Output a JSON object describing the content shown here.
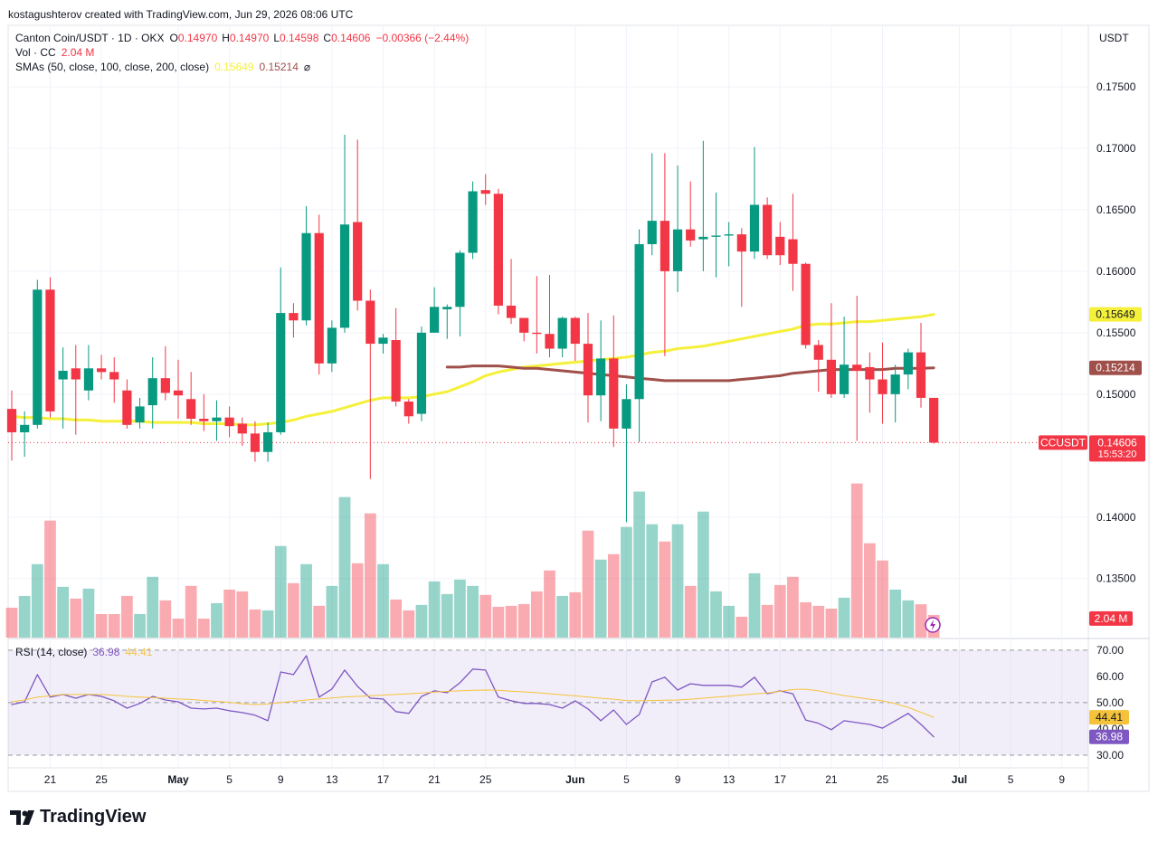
{
  "header": {
    "credit": "kostagushterov created with TradingView.com, Jun 29, 2026 08:06 UTC"
  },
  "footer": {
    "brand": "TradingView"
  },
  "chart_data": [
    {
      "type": "candlestick",
      "title": "Canton Coin/USDT · 1D · OKX",
      "ohlc_labels": [
        {
          "key": "O",
          "value": "0.14970"
        },
        {
          "key": "H",
          "value": "0.14970"
        },
        {
          "key": "L",
          "value": "0.14598"
        },
        {
          "key": "C",
          "value": "0.14606"
        }
      ],
      "change_label": "−0.00366 (−2.44%)",
      "currency": "USDT",
      "symbol": "CCUSDT",
      "last_price_label": "0.14606",
      "countdown": "15:53:20",
      "up_color": "#089981",
      "down_color": "#f23645",
      "x": [
        "2026-04-18",
        "2026-04-19",
        "2026-04-20",
        "2026-04-21",
        "2026-04-22",
        "2026-04-23",
        "2026-04-24",
        "2026-04-25",
        "2026-04-26",
        "2026-04-27",
        "2026-04-28",
        "2026-04-29",
        "2026-04-30",
        "2026-05-01",
        "2026-05-02",
        "2026-05-03",
        "2026-05-04",
        "2026-05-05",
        "2026-05-06",
        "2026-05-07",
        "2026-05-08",
        "2026-05-09",
        "2026-05-10",
        "2026-05-11",
        "2026-05-12",
        "2026-05-13",
        "2026-05-14",
        "2026-05-15",
        "2026-05-16",
        "2026-05-17",
        "2026-05-18",
        "2026-05-19",
        "2026-05-20",
        "2026-05-21",
        "2026-05-22",
        "2026-05-23",
        "2026-05-24",
        "2026-05-25",
        "2026-05-26",
        "2026-05-27",
        "2026-05-28",
        "2026-05-29",
        "2026-05-30",
        "2026-05-31",
        "2026-06-01",
        "2026-06-02",
        "2026-06-03",
        "2026-06-04",
        "2026-06-05",
        "2026-06-06",
        "2026-06-07",
        "2026-06-08",
        "2026-06-09",
        "2026-06-10",
        "2026-06-11",
        "2026-06-12",
        "2026-06-13",
        "2026-06-14",
        "2026-06-15",
        "2026-06-16",
        "2026-06-17",
        "2026-06-18",
        "2026-06-19",
        "2026-06-20",
        "2026-06-21",
        "2026-06-22",
        "2026-06-23",
        "2026-06-24",
        "2026-06-25",
        "2026-06-26",
        "2026-06-27",
        "2026-06-28",
        "2026-06-29"
      ],
      "open": [
        0.1488,
        0.1469,
        0.1475,
        0.1585,
        0.1512,
        0.1521,
        0.1503,
        0.1521,
        0.1518,
        0.1503,
        0.1477,
        0.1491,
        0.1513,
        0.1503,
        0.1496,
        0.148,
        0.1478,
        0.1481,
        0.1476,
        0.1468,
        0.1453,
        0.1469,
        0.1566,
        0.156,
        0.1631,
        0.1525,
        0.1554,
        0.164,
        0.1576,
        0.1541,
        0.1544,
        0.1494,
        0.1484,
        0.155,
        0.1569,
        0.1571,
        0.1615,
        0.1666,
        0.1663,
        0.1572,
        0.1562,
        0.155,
        0.1549,
        0.1537,
        0.1562,
        0.1541,
        0.1499,
        0.1529,
        0.1472,
        0.1496,
        0.1622,
        0.1641,
        0.16,
        0.1634,
        0.1626,
        0.1628,
        0.1629,
        0.163,
        0.1616,
        0.1654,
        0.1628,
        0.1626,
        0.1606,
        0.154,
        0.1528,
        0.15,
        0.1524,
        0.1522,
        0.1512,
        0.15,
        0.1516,
        0.1534,
        0.1497
      ],
      "high": [
        0.1503,
        0.1486,
        0.1593,
        0.1595,
        0.1538,
        0.154,
        0.154,
        0.1532,
        0.153,
        0.1512,
        0.1497,
        0.153,
        0.1539,
        0.1528,
        0.1518,
        0.15,
        0.1495,
        0.149,
        0.1481,
        0.1478,
        0.1477,
        0.1603,
        0.1574,
        0.1653,
        0.1646,
        0.156,
        0.1711,
        0.1707,
        0.1585,
        0.1549,
        0.157,
        0.1496,
        0.1555,
        0.1587,
        0.1573,
        0.1617,
        0.1673,
        0.1679,
        0.1667,
        0.161,
        0.1562,
        0.1596,
        0.1597,
        0.1563,
        0.1563,
        0.1566,
        0.156,
        0.1564,
        0.1508,
        0.1634,
        0.1696,
        0.1696,
        0.1686,
        0.1673,
        0.1706,
        0.1664,
        0.164,
        0.1635,
        0.1701,
        0.166,
        0.164,
        0.1663,
        0.1607,
        0.1544,
        0.1574,
        0.1563,
        0.158,
        0.1534,
        0.1542,
        0.1524,
        0.1537,
        0.1558,
        0.1497
      ],
      "low": [
        0.1446,
        0.1449,
        0.1472,
        0.1481,
        0.1472,
        0.1467,
        0.1495,
        0.1512,
        0.1493,
        0.1472,
        0.1472,
        0.1472,
        0.1495,
        0.148,
        0.1475,
        0.147,
        0.1462,
        0.1465,
        0.1458,
        0.1445,
        0.1445,
        0.1467,
        0.1546,
        0.1556,
        0.1516,
        0.1518,
        0.155,
        0.1568,
        0.1431,
        0.1533,
        0.149,
        0.1476,
        0.1478,
        0.155,
        0.1545,
        0.1547,
        0.161,
        0.1654,
        0.1565,
        0.1557,
        0.1543,
        0.1533,
        0.153,
        0.153,
        0.1527,
        0.1477,
        0.1478,
        0.1457,
        0.1396,
        0.1461,
        0.1613,
        0.1531,
        0.1583,
        0.162,
        0.16,
        0.1595,
        0.1604,
        0.1571,
        0.161,
        0.161,
        0.1605,
        0.1584,
        0.1537,
        0.1502,
        0.1497,
        0.1497,
        0.1462,
        0.1485,
        0.1476,
        0.1477,
        0.1504,
        0.1489,
        0.14598
      ],
      "close": [
        0.1469,
        0.1475,
        0.1585,
        0.1486,
        0.1519,
        0.1512,
        0.1521,
        0.1518,
        0.1512,
        0.1475,
        0.149,
        0.1513,
        0.1501,
        0.1499,
        0.148,
        0.1478,
        0.1481,
        0.1474,
        0.1468,
        0.1453,
        0.1469,
        0.1566,
        0.156,
        0.1631,
        0.1525,
        0.1554,
        0.1638,
        0.1576,
        0.1541,
        0.1546,
        0.1494,
        0.1482,
        0.155,
        0.1571,
        0.1571,
        0.1615,
        0.1665,
        0.1663,
        0.1572,
        0.1562,
        0.155,
        0.1549,
        0.1537,
        0.1562,
        0.1541,
        0.1499,
        0.1529,
        0.1472,
        0.1496,
        0.1622,
        0.1641,
        0.16,
        0.1634,
        0.1625,
        0.1628,
        0.1629,
        0.163,
        0.1616,
        0.1654,
        0.1613,
        0.1613,
        0.1606,
        0.154,
        0.1528,
        0.15,
        0.1524,
        0.1519,
        0.1512,
        0.15,
        0.1516,
        0.1534,
        0.1497,
        0.14606
      ],
      "xlim": [
        "2026-04-18",
        "2026-07-11"
      ],
      "xticks": [
        {
          "value": "2026-04-21",
          "label": "21"
        },
        {
          "value": "2026-04-25",
          "label": "25"
        },
        {
          "value": "2026-05-01",
          "label": "May"
        },
        {
          "value": "2026-05-05",
          "label": "5"
        },
        {
          "value": "2026-05-09",
          "label": "9"
        },
        {
          "value": "2026-05-13",
          "label": "13"
        },
        {
          "value": "2026-05-17",
          "label": "17"
        },
        {
          "value": "2026-05-21",
          "label": "21"
        },
        {
          "value": "2026-05-25",
          "label": "25"
        },
        {
          "value": "2026-06-01",
          "label": "Jun"
        },
        {
          "value": "2026-06-05",
          "label": "5"
        },
        {
          "value": "2026-06-09",
          "label": "9"
        },
        {
          "value": "2026-06-13",
          "label": "13"
        },
        {
          "value": "2026-06-17",
          "label": "17"
        },
        {
          "value": "2026-06-21",
          "label": "21"
        },
        {
          "value": "2026-06-25",
          "label": "25"
        },
        {
          "value": "2026-07-01",
          "label": "Jul"
        },
        {
          "value": "2026-07-05",
          "label": "5"
        },
        {
          "value": "2026-07-09",
          "label": "9"
        }
      ],
      "ylim": [
        0.1302,
        0.18
      ],
      "yticks": [
        {
          "value": 0.135,
          "label": "0.13500"
        },
        {
          "value": 0.14,
          "label": "0.14000"
        },
        {
          "value": 0.15,
          "label": "0.15000"
        },
        {
          "value": 0.155,
          "label": "0.15500"
        },
        {
          "value": 0.16,
          "label": "0.16000"
        },
        {
          "value": 0.165,
          "label": "0.16500"
        },
        {
          "value": 0.17,
          "label": "0.17000"
        },
        {
          "value": 0.175,
          "label": "0.17500"
        }
      ],
      "grid": true,
      "volume": {
        "name": "Vol · CC",
        "value_label": "2.04 M",
        "ylim": [
          0,
          55.1
        ],
        "values": [
          2.69,
          3.75,
          6.61,
          10.53,
          4.57,
          3.51,
          4.41,
          2.12,
          2.12,
          3.75,
          2.12,
          5.47,
          3.35,
          1.71,
          4.65,
          1.71,
          3.1,
          4.32,
          4.16,
          2.53,
          2.45,
          8.24,
          4.9,
          6.61,
          2.86,
          4.65,
          12.65,
          6.69,
          11.18,
          6.61,
          3.43,
          2.45,
          2.94,
          5.06,
          3.92,
          5.22,
          4.65,
          3.84,
          2.77,
          2.86,
          3.02,
          4.16,
          6.04,
          3.75,
          4.08,
          9.63,
          7.02,
          7.51,
          9.96,
          13.14,
          10.2,
          8.65,
          10.2,
          4.65,
          11.34,
          4.16,
          2.86,
          1.88,
          5.79,
          2.94,
          4.73,
          5.47,
          3.18,
          2.86,
          2.61,
          3.59,
          13.87,
          8.49,
          6.94,
          4.32,
          3.35,
          3.0,
          2.04
        ]
      },
      "moving_averages": {
        "name": "SMAs (50, close, 100, close, 200, close)",
        "marker": "⌀",
        "series": [
          {
            "color": "#f5f03a",
            "value_label": "0.15649",
            "values": [
              0.1482,
              0.1481,
              0.1481,
              0.148,
              0.148,
              0.1479,
              0.1479,
              0.1478,
              0.1478,
              0.1478,
              0.1478,
              0.1477,
              0.1477,
              0.1477,
              0.1477,
              0.1476,
              0.1476,
              0.1476,
              0.1475,
              0.1475,
              0.1476,
              0.1477,
              0.1479,
              0.1482,
              0.1484,
              0.1486,
              0.1489,
              0.1492,
              0.1495,
              0.1497,
              0.1497,
              0.1497,
              0.1498,
              0.15,
              0.1502,
              0.1506,
              0.151,
              0.1515,
              0.1518,
              0.152,
              0.1522,
              0.1523,
              0.1524,
              0.1525,
              0.1526,
              0.1527,
              0.1528,
              0.1529,
              0.153,
              0.1532,
              0.1534,
              0.1535,
              0.1537,
              0.1538,
              0.1539,
              0.1541,
              0.1543,
              0.1545,
              0.1547,
              0.1549,
              0.1551,
              0.1553,
              0.1556,
              0.1557,
              0.1557,
              0.1558,
              0.1559,
              0.1559,
              0.156,
              0.1561,
              0.1562,
              0.1563,
              0.15649
            ]
          },
          {
            "color": "#a0504a",
            "value_label": "0.15214",
            "values": [
              null,
              null,
              null,
              null,
              null,
              null,
              null,
              null,
              null,
              null,
              null,
              null,
              null,
              null,
              null,
              null,
              null,
              null,
              null,
              null,
              null,
              null,
              null,
              null,
              null,
              null,
              null,
              null,
              null,
              null,
              null,
              null,
              null,
              null,
              0.1522,
              0.1522,
              0.1523,
              0.1523,
              0.1523,
              0.1522,
              0.1521,
              0.1521,
              0.152,
              0.1519,
              0.1518,
              0.1517,
              0.1516,
              0.1515,
              0.1514,
              0.1513,
              0.1512,
              0.1511,
              0.1511,
              0.1511,
              0.1511,
              0.1511,
              0.1511,
              0.1512,
              0.1513,
              0.1514,
              0.1515,
              0.1517,
              0.1518,
              0.1519,
              0.152,
              0.152,
              0.152,
              0.152,
              0.152,
              0.1521,
              0.1521,
              0.1521,
              0.15214
            ]
          }
        ]
      }
    },
    {
      "type": "line",
      "title": "RSI (14, close)",
      "ylim": [
        25.5,
        74.1
      ],
      "yticks": [
        {
          "value": 30,
          "label": "30.00"
        },
        {
          "value": 40,
          "label": "40.00"
        },
        {
          "value": 50,
          "label": "50.00"
        },
        {
          "value": 60,
          "label": "60.00"
        },
        {
          "value": 70,
          "label": "70.00"
        }
      ],
      "band": [
        30,
        70
      ],
      "band_color": "#7e57c2",
      "levels": [
        70,
        50,
        30
      ],
      "series": [
        {
          "color": "#7e57c2",
          "value_label": "36.98",
          "values": [
            49.3,
            50.3,
            60.7,
            52.1,
            53.1,
            51.7,
            53.1,
            52.4,
            50.7,
            47.9,
            49.7,
            52.4,
            51.0,
            50.3,
            47.9,
            47.6,
            47.9,
            46.9,
            46.2,
            45.2,
            43.1,
            61.7,
            60.7,
            67.9,
            52.1,
            55.2,
            62.4,
            56.2,
            51.7,
            51.4,
            46.6,
            45.9,
            52.4,
            54.5,
            53.8,
            57.6,
            62.8,
            62.4,
            52.1,
            50.7,
            49.7,
            49.7,
            49.3,
            47.9,
            50.7,
            47.6,
            43.1,
            47.2,
            41.7,
            45.5,
            57.9,
            59.7,
            54.8,
            57.2,
            56.6,
            56.6,
            56.6,
            55.9,
            59.7,
            53.4,
            54.5,
            53.4,
            43.4,
            42.1,
            39.7,
            43.1,
            42.4,
            41.7,
            40.3,
            43.1,
            45.9,
            41.7,
            36.98
          ]
        },
        {
          "color": "#f5c33b",
          "value_label": "44.41",
          "values": [
            50.3,
            51.0,
            52.1,
            52.6,
            53.1,
            53.1,
            53.1,
            53.1,
            52.8,
            52.4,
            52.1,
            51.9,
            51.7,
            51.4,
            51.2,
            50.8,
            50.5,
            50.1,
            49.6,
            49.3,
            49.5,
            50.0,
            50.5,
            51.0,
            51.4,
            51.8,
            52.2,
            52.4,
            52.6,
            52.9,
            53.1,
            53.4,
            53.7,
            54.0,
            54.3,
            54.5,
            54.7,
            54.8,
            54.7,
            54.4,
            54.1,
            53.8,
            53.4,
            53.0,
            52.6,
            52.1,
            51.7,
            51.3,
            50.8,
            50.7,
            50.8,
            50.9,
            51.0,
            51.3,
            51.7,
            52.1,
            52.5,
            52.9,
            53.3,
            53.7,
            54.3,
            55.0,
            55.1,
            54.5,
            53.6,
            52.7,
            52.0,
            51.3,
            50.7,
            49.6,
            48.2,
            46.3,
            44.41
          ]
        }
      ]
    }
  ]
}
